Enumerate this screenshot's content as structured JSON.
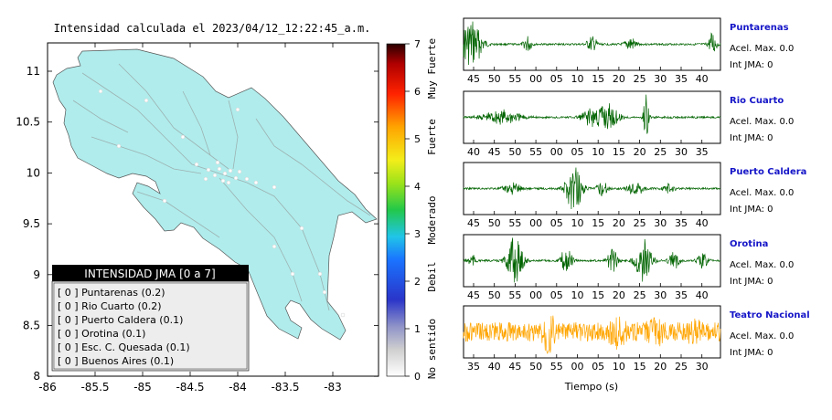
{
  "map": {
    "title": "Intensidad calculada el 2023/04/12_12:22:45_a.m.",
    "x_ticks": [
      "-86",
      "-85.5",
      "-85",
      "-84.5",
      "-84",
      "-83.5",
      "-83"
    ],
    "y_ticks": [
      "11",
      "10.5",
      "10",
      "9.5",
      "9",
      "8.5",
      "8"
    ],
    "land_color": "#b0ecec",
    "station_color": "#ffffff"
  },
  "legend": {
    "title": "INTENSIDAD JMA [0 a 7]",
    "items": [
      "[ 0 ]  Puntarenas (0.2)",
      "[ 0 ]  Rio Cuarto (0.2)",
      "[ 0 ]  Puerto Caldera (0.1)",
      "[ 0 ]  Orotina (0.1)",
      "[ 0 ]  Esc. C. Quesada (0.1)",
      "[ 0 ]  Buenos Aires (0.1)"
    ]
  },
  "colorbar": {
    "ticks": [
      "0",
      "1",
      "2",
      "3",
      "4",
      "5",
      "6",
      "7"
    ],
    "labels": [
      "No sentido",
      "Debil",
      "Moderado",
      "Fuerte",
      "Muy Fuerte"
    ]
  },
  "chart_data": {
    "type": "line",
    "xlabel": "Tiempo (s)",
    "series": [
      {
        "name": "Puntarenas",
        "accel_label": "Acel. Max. 0.0",
        "jma_label": "Int JMA: 0",
        "color": "#006400",
        "x_ticks": [
          "45",
          "50",
          "55",
          "00",
          "05",
          "10",
          "15",
          "20",
          "25",
          "30",
          "35",
          "40"
        ],
        "bursts": [
          [
            0.03,
            1.0,
            0.04
          ],
          [
            0.25,
            0.35,
            0.015
          ],
          [
            0.5,
            0.3,
            0.02
          ],
          [
            0.65,
            0.3,
            0.02
          ],
          [
            0.97,
            0.5,
            0.015
          ]
        ]
      },
      {
        "name": "Rio Cuarto",
        "accel_label": "Acel. Max. 0.0",
        "jma_label": "Int JMA: 0",
        "color": "#006400",
        "x_ticks": [
          "40",
          "45",
          "50",
          "55",
          "00",
          "05",
          "10",
          "15",
          "20",
          "25",
          "30",
          "35"
        ],
        "bursts": [
          [
            0.15,
            0.3,
            0.07
          ],
          [
            0.5,
            0.35,
            0.04
          ],
          [
            0.56,
            0.55,
            0.04
          ],
          [
            0.71,
            1.0,
            0.01
          ]
        ]
      },
      {
        "name": "Puerto Caldera",
        "accel_label": "Acel. Max. 0.0",
        "jma_label": "Int JMA: 0",
        "color": "#006400",
        "x_ticks": [
          "45",
          "50",
          "55",
          "00",
          "05",
          "10",
          "15",
          "20",
          "25",
          "30",
          "35",
          "40"
        ],
        "bursts": [
          [
            0.19,
            0.25,
            0.03
          ],
          [
            0.43,
            1.0,
            0.03
          ],
          [
            0.54,
            0.3,
            0.02
          ],
          [
            0.67,
            0.3,
            0.03
          ],
          [
            0.8,
            0.2,
            0.02
          ]
        ]
      },
      {
        "name": "Orotina",
        "accel_label": "Acel. Max. 0.0",
        "jma_label": "Int JMA: 0",
        "color": "#006400",
        "x_ticks": [
          "45",
          "50",
          "55",
          "00",
          "05",
          "10",
          "15",
          "20",
          "25",
          "30",
          "35",
          "40"
        ],
        "bursts": [
          [
            0.03,
            0.3,
            0.015
          ],
          [
            0.2,
            1.0,
            0.03
          ],
          [
            0.4,
            0.6,
            0.02
          ],
          [
            0.58,
            0.45,
            0.02
          ],
          [
            0.7,
            0.9,
            0.03
          ],
          [
            0.82,
            0.35,
            0.02
          ],
          [
            0.93,
            0.3,
            0.02
          ]
        ]
      },
      {
        "name": "Teatro Nacional",
        "accel_label": "Acel. Max. 0.0",
        "jma_label": "Int JMA: 0",
        "color": "#ffa500",
        "x_ticks": [
          "35",
          "40",
          "45",
          "50",
          "55",
          "00",
          "05",
          "10",
          "15",
          "20",
          "25",
          "30"
        ],
        "bursts": [
          [
            0.33,
            1.0,
            0.03
          ],
          [
            0.6,
            0.7,
            0.05
          ],
          [
            0.75,
            0.6,
            0.06
          ],
          [
            0.9,
            0.55,
            0.05
          ]
        ]
      }
    ]
  }
}
